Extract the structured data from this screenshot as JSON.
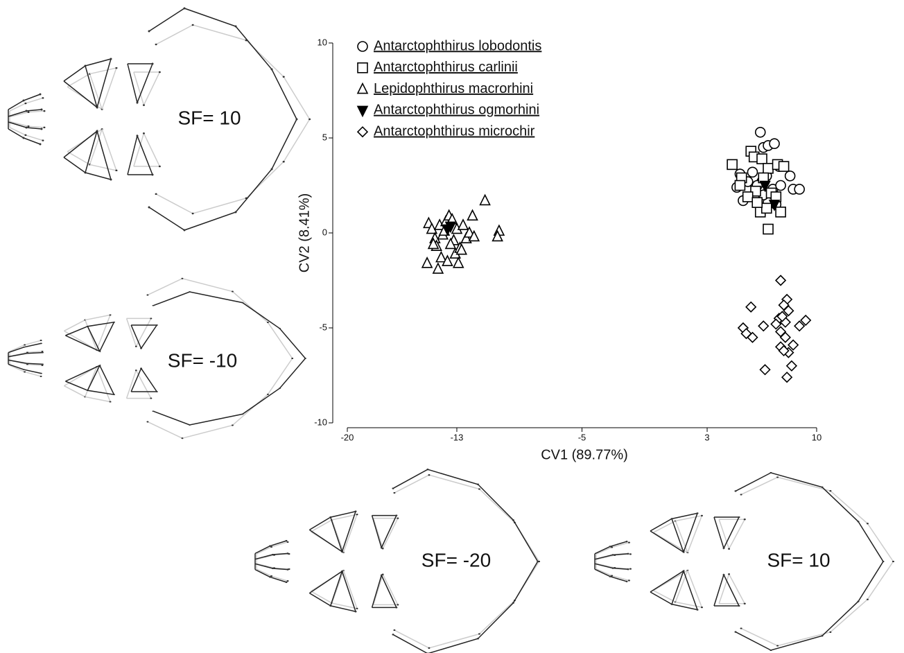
{
  "chart_data": {
    "type": "scatter",
    "xlabel": "CV1 (89.77%)",
    "ylabel": "CV2 (8.41%)",
    "xlim": [
      -20,
      10
    ],
    "xticks": [
      -20,
      -13,
      -5,
      3,
      10
    ],
    "ylim": [
      -10,
      10
    ],
    "yticks": [
      -10,
      -5,
      0,
      5,
      10
    ],
    "legend": "upper left",
    "series": [
      {
        "name": "Antarctophthirus lobodontis",
        "marker": "circle",
        "color": "#000000",
        "x": [
          6.4,
          6.6,
          6.9,
          7.3,
          5.1,
          5.9,
          6.5,
          6.8,
          7.6,
          8.3,
          4.9,
          5.6,
          6.2,
          7.2,
          7.7,
          8.5,
          8.9,
          5.3,
          6.4,
          6.9,
          7.4,
          6.6
        ],
        "values": [
          5.3,
          4.5,
          4.6,
          4.7,
          3.1,
          3.2,
          2.7,
          3.0,
          3.5,
          3.0,
          2.4,
          2.7,
          2.5,
          2.3,
          2.5,
          2.3,
          2.3,
          1.7,
          1.3,
          1.6,
          1.5,
          2.0
        ]
      },
      {
        "name": "Antarctophthirus carlinii",
        "marker": "square",
        "color": "#000000",
        "x": [
          4.6,
          5.8,
          6.0,
          6.5,
          6.9,
          7.5,
          7.9,
          5.2,
          5.1,
          6.1,
          6.6,
          7.1,
          7.4,
          5.6,
          6.4,
          6.8,
          7.7,
          6.9,
          6.2
        ],
        "values": [
          3.6,
          4.3,
          4.0,
          3.9,
          3.4,
          3.6,
          3.5,
          2.9,
          2.5,
          2.2,
          2.9,
          2.1,
          1.9,
          1.9,
          1.1,
          1.3,
          1.1,
          0.2,
          1.6
        ]
      },
      {
        "name": "Lepidophthirus macrorhini",
        "marker": "triangle",
        "color": "#000000",
        "x": [
          -14.8,
          -14.6,
          -14.4,
          -14.3,
          -14.9,
          -14.0,
          -14.1,
          -13.9,
          -13.7,
          -13.5,
          -13.3,
          -13.2,
          -13.1,
          -13.0,
          -12.8,
          -12.6,
          -12.4,
          -12.2,
          -12.0,
          -11.9,
          -11.2,
          -10.3,
          -10.4,
          -13.6,
          -14.2,
          -12.9,
          -13.4,
          -14.5,
          -13.8,
          -12.7
        ],
        "values": [
          0.5,
          0.2,
          -0.3,
          -0.7,
          -1.6,
          -1.3,
          0.4,
          -0.1,
          0.6,
          0.9,
          0.7,
          -0.4,
          -1.1,
          0.2,
          -0.8,
          0.4,
          -0.3,
          0.0,
          0.9,
          -0.2,
          1.7,
          0.1,
          -0.2,
          -1.5,
          -1.9,
          -1.6,
          -0.6,
          -0.6,
          0.1,
          -0.9
        ]
      },
      {
        "name": "Antarctophthirus ogmorhini",
        "marker": "triangle-down",
        "color": "#000000",
        "x": [
          -13.6,
          -13.4,
          6.7,
          7.3
        ],
        "values": [
          0.2,
          0.35,
          2.5,
          1.5
        ]
      },
      {
        "name": "Antarctophthirus microchir",
        "marker": "diamond",
        "color": "#000000",
        "x": [
          7.7,
          8.1,
          7.9,
          5.8,
          8.2,
          7.6,
          8.0,
          7.4,
          9.3,
          8.9,
          6.6,
          5.3,
          5.5,
          5.9,
          7.7,
          8.0,
          8.5,
          7.7,
          8.2,
          7.9,
          8.4,
          6.7,
          8.1,
          7.8
        ],
        "values": [
          -2.5,
          -3.5,
          -3.8,
          -3.9,
          -4.1,
          -4.5,
          -4.7,
          -4.8,
          -4.6,
          -4.9,
          -4.9,
          -5.0,
          -5.3,
          -5.5,
          -5.2,
          -5.5,
          -5.9,
          -6.0,
          -6.3,
          -6.2,
          -7.0,
          -7.2,
          -7.6,
          -4.4
        ]
      }
    ]
  },
  "shapes": [
    {
      "label": "SF= 10"
    },
    {
      "label": "SF= -10"
    },
    {
      "label": "SF= -20"
    },
    {
      "label": "SF= 10"
    }
  ]
}
